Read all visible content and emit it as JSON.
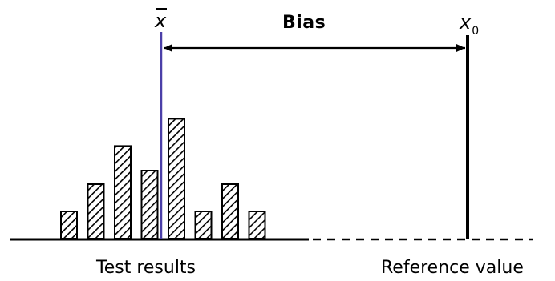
{
  "labels": {
    "bias": "Bias",
    "mean_symbol": "x",
    "reference_symbol": "x",
    "reference_subscript": "0",
    "test_results": "Test results",
    "reference_value": "Reference value"
  },
  "histogram": {
    "relative_heights": [
      1,
      2,
      3.4,
      2.5,
      4.4,
      1,
      2,
      1
    ]
  },
  "colors": {
    "ink": "#000000",
    "mean_line": "#4b3fa8",
    "background": "#ffffff"
  }
}
